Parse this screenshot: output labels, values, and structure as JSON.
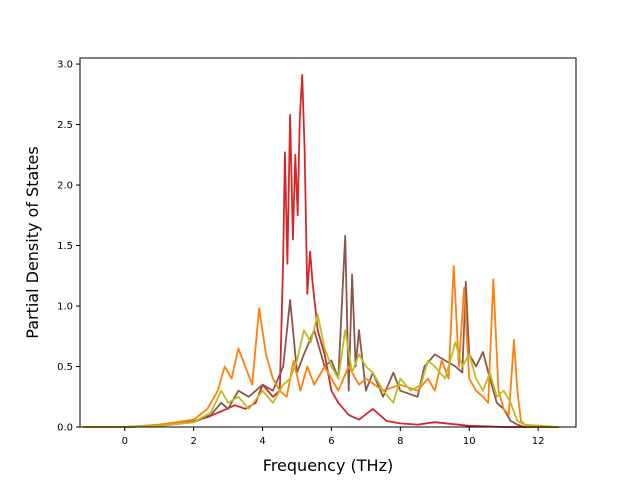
{
  "chart_data": {
    "type": "line",
    "title": "",
    "xlabel": "Frequency (THz)",
    "ylabel": "Partial Density of States",
    "xlim": [
      -1.3,
      13.1
    ],
    "ylim": [
      0.0,
      3.05
    ],
    "xticks": [
      0,
      2,
      4,
      6,
      8,
      10,
      12
    ],
    "yticks": [
      0.0,
      0.5,
      1.0,
      1.5,
      2.0,
      2.5,
      3.0
    ],
    "ytick_labels": [
      "0.0",
      "0.5",
      "1.0",
      "1.5",
      "2.0",
      "2.5",
      "3.0"
    ],
    "grid": false,
    "legend": "none",
    "series": [
      {
        "color": "#d62728",
        "x": [
          -1.2,
          0,
          1,
          2,
          2.4,
          2.8,
          3.2,
          3.5,
          3.8,
          4.0,
          4.3,
          4.5,
          4.6,
          4.65,
          4.72,
          4.8,
          4.88,
          4.95,
          5.02,
          5.08,
          5.15,
          5.22,
          5.3,
          5.38,
          5.45,
          5.6,
          5.8,
          6.0,
          6.2,
          6.5,
          6.8,
          7.2,
          7.6,
          8.0,
          8.5,
          9.0,
          10.0,
          11.0,
          12.6
        ],
        "y": [
          0.0,
          0.0,
          0.01,
          0.05,
          0.08,
          0.13,
          0.18,
          0.15,
          0.2,
          0.35,
          0.25,
          0.3,
          1.4,
          2.27,
          1.35,
          2.58,
          1.55,
          2.25,
          1.75,
          2.55,
          2.91,
          2.3,
          1.1,
          1.45,
          1.2,
          0.8,
          0.6,
          0.3,
          0.2,
          0.1,
          0.06,
          0.15,
          0.05,
          0.03,
          0.02,
          0.04,
          0.01,
          0.0,
          0.0
        ]
      },
      {
        "color": "#8c564b",
        "x": [
          -1.2,
          0,
          1,
          2,
          2.5,
          2.8,
          3.0,
          3.3,
          3.6,
          4.0,
          4.3,
          4.6,
          4.8,
          5.0,
          5.2,
          5.5,
          5.8,
          6.0,
          6.2,
          6.4,
          6.5,
          6.6,
          6.7,
          6.8,
          7.0,
          7.2,
          7.5,
          7.8,
          8.0,
          8.5,
          8.7,
          9.0,
          9.3,
          9.6,
          9.8,
          9.9,
          10.0,
          10.2,
          10.4,
          10.6,
          10.8,
          11.0,
          11.2,
          11.4,
          11.6,
          12.6
        ],
        "y": [
          0.0,
          0.0,
          0.01,
          0.04,
          0.1,
          0.2,
          0.15,
          0.3,
          0.25,
          0.35,
          0.3,
          0.5,
          1.05,
          0.45,
          0.6,
          0.8,
          0.5,
          0.55,
          0.4,
          1.58,
          0.3,
          1.26,
          0.5,
          0.8,
          0.3,
          0.45,
          0.25,
          0.45,
          0.3,
          0.25,
          0.5,
          0.6,
          0.55,
          0.5,
          0.45,
          1.2,
          0.6,
          0.5,
          0.62,
          0.4,
          0.2,
          0.15,
          0.05,
          0.02,
          0.0,
          0.0
        ]
      },
      {
        "color": "#ff7f0e",
        "x": [
          -1.2,
          0,
          1,
          2,
          2.4,
          2.7,
          2.9,
          3.1,
          3.3,
          3.5,
          3.7,
          3.9,
          4.1,
          4.3,
          4.5,
          4.7,
          4.9,
          5.1,
          5.3,
          5.5,
          5.8,
          6.0,
          6.2,
          6.5,
          6.8,
          7.0,
          7.5,
          8.0,
          8.5,
          8.8,
          9.0,
          9.2,
          9.4,
          9.55,
          9.7,
          9.85,
          10.0,
          10.2,
          10.4,
          10.55,
          10.7,
          10.85,
          11.0,
          11.15,
          11.3,
          11.4,
          11.5,
          11.7,
          12.6
        ],
        "y": [
          0.0,
          0.0,
          0.02,
          0.06,
          0.15,
          0.3,
          0.5,
          0.4,
          0.65,
          0.5,
          0.35,
          0.98,
          0.6,
          0.4,
          0.3,
          0.25,
          0.55,
          0.3,
          0.5,
          0.35,
          0.5,
          0.4,
          0.3,
          0.5,
          0.35,
          0.4,
          0.3,
          0.35,
          0.3,
          0.4,
          0.3,
          0.55,
          0.4,
          1.33,
          0.5,
          1.15,
          0.4,
          0.3,
          0.25,
          0.2,
          1.22,
          0.3,
          0.15,
          0.1,
          0.72,
          0.3,
          0.05,
          0.0,
          0.0
        ]
      },
      {
        "color": "#bcbd22",
        "x": [
          -1.2,
          0,
          1,
          2,
          2.5,
          2.8,
          3.0,
          3.3,
          3.6,
          4.0,
          4.3,
          4.6,
          4.8,
          5.0,
          5.2,
          5.4,
          5.6,
          5.8,
          6.0,
          6.2,
          6.4,
          6.6,
          6.8,
          7.0,
          7.2,
          7.5,
          7.8,
          8.0,
          8.3,
          8.6,
          8.8,
          9.0,
          9.3,
          9.6,
          9.8,
          10.0,
          10.2,
          10.4,
          10.6,
          10.8,
          11.0,
          11.2,
          11.4,
          11.6,
          12.6
        ],
        "y": [
          0.0,
          0.0,
          0.01,
          0.04,
          0.12,
          0.3,
          0.2,
          0.25,
          0.15,
          0.3,
          0.2,
          0.35,
          0.4,
          0.55,
          0.8,
          0.7,
          0.93,
          0.65,
          0.5,
          0.4,
          0.8,
          0.45,
          0.6,
          0.5,
          0.45,
          0.3,
          0.2,
          0.4,
          0.3,
          0.35,
          0.55,
          0.5,
          0.4,
          0.7,
          0.5,
          0.6,
          0.4,
          0.3,
          0.45,
          0.25,
          0.3,
          0.2,
          0.05,
          0.02,
          0.0
        ]
      }
    ]
  }
}
